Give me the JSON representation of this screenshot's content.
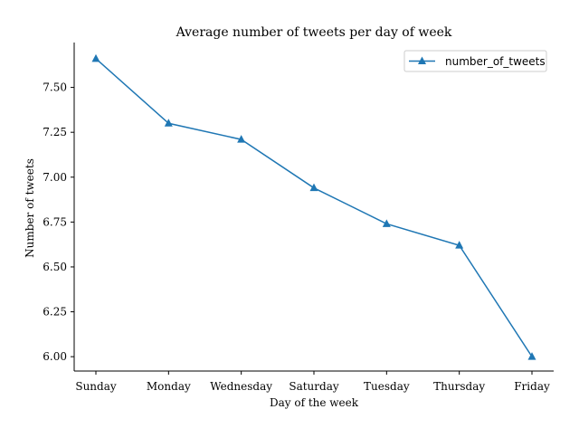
{
  "chart_data": {
    "type": "line",
    "title": "Average number of tweets per day of week",
    "xlabel": "Day of the week",
    "ylabel": "Number of tweets",
    "categories": [
      "Sunday",
      "Monday",
      "Wednesday",
      "Saturday",
      "Tuesday",
      "Thursday",
      "Friday"
    ],
    "series": [
      {
        "name": "number_of_tweets",
        "values": [
          7.66,
          7.3,
          7.21,
          6.94,
          6.74,
          6.62,
          6.0
        ],
        "color": "#1f77b4",
        "marker": "triangle-up"
      }
    ],
    "ylim": [
      5.92,
      7.75
    ],
    "yticks": [
      "6.00",
      "6.25",
      "6.50",
      "6.75",
      "7.00",
      "7.25",
      "7.50"
    ],
    "grid": false,
    "legend": "top-right"
  }
}
